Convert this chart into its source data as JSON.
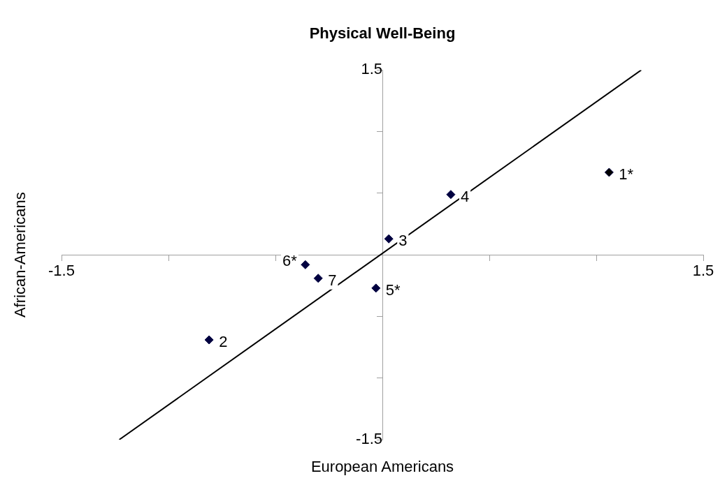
{
  "chart_data": {
    "type": "scatter",
    "title": "Physical Well-Being",
    "xlabel": "European Americans",
    "ylabel": "African-Americans",
    "xlim": [
      -1.5,
      1.5
    ],
    "ylim": [
      -1.5,
      1.5
    ],
    "xticks": [
      -1.5,
      {
        "value": -1,
        "label": null
      },
      {
        "value": -0.5,
        "label": null
      },
      {
        "value": 0,
        "label": null
      },
      {
        "value": 0.5,
        "label": null
      },
      {
        "value": 1,
        "label": null
      },
      1.5
    ],
    "yticks": [
      -1.5,
      {
        "value": -1,
        "label": null
      },
      {
        "value": -0.5,
        "label": null
      },
      {
        "value": 0,
        "label": null
      },
      {
        "value": 0.5,
        "label": null
      },
      {
        "value": 1,
        "label": null
      },
      1.5
    ],
    "grid": false,
    "legend": false,
    "marker": "diamond",
    "series": [
      {
        "type": "scatter",
        "color": "#000040",
        "colors": [
          "#000000",
          "#000040",
          "#000040",
          "#000040",
          "#000040",
          "#000040",
          "#000040"
        ],
        "x": [
          1.06,
          -0.81,
          0.03,
          0.32,
          -0.03,
          -0.36,
          -0.3
        ],
        "values": [
          0.67,
          -0.69,
          0.13,
          0.49,
          -0.27,
          -0.08,
          -0.19
        ]
      },
      {
        "type": "line",
        "color": "#000000",
        "marker": "none",
        "x": [
          -1.23,
          1.21
        ],
        "values": [
          -1.5,
          1.5
        ]
      }
    ],
    "annotations": [
      {
        "text": "1*",
        "x": 1.06,
        "y": 0.67
      },
      {
        "text": "2",
        "x": -0.81,
        "y": -0.69
      },
      {
        "text": "3",
        "x": 0.03,
        "y": 0.13
      },
      {
        "text": "4",
        "x": 0.32,
        "y": 0.49
      },
      {
        "text": "5*",
        "x": -0.03,
        "y": -0.27
      },
      {
        "text": "6*",
        "x": -0.36,
        "y": -0.08
      },
      {
        "text": "7",
        "x": -0.3,
        "y": -0.19
      }
    ]
  }
}
